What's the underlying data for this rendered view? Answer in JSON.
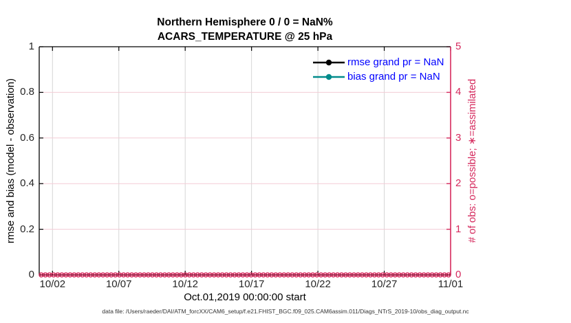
{
  "figure": {
    "title_line1": "Northern Hemisphere 0 / 0 = NaN%",
    "title_line2": "ACARS_TEMPERATURE @ 25 hPa",
    "xlabel": "Oct.01,2019 00:00:00 start",
    "ylabel_left": "rmse and bias (model - observation)",
    "ylabel_right": "# of obs: o=possible; ∗=assimilated",
    "annotation": "data file: /Users/raeder/DAI/ATM_forcXX/CAM6_setup/f.e21.FHIST_BGC.f09_025.CAM6assim.011/Diags_NTrS_2019-10/obs_diag_output.nc"
  },
  "legend": {
    "items": [
      {
        "label": "rmse grand pr = NaN",
        "color": "#000000"
      },
      {
        "label": "bias grand pr = NaN",
        "color": "#008b8b"
      }
    ],
    "text_color": "#0000ff"
  },
  "colors": {
    "obs_count_magenta": "#d5295d",
    "rmse_black": "#000000",
    "bias_teal": "#008b8b",
    "legend_text_blue": "#0000ff",
    "grid_pink": "#f3cbd5",
    "grid_gray": "#d6d6d6",
    "axis_black": "#000000",
    "tick_label_gray": "#262626"
  },
  "chart_data": {
    "type": "line",
    "title": "Northern Hemisphere 0 / 0 = NaN%",
    "subtitle": "ACARS_TEMPERATURE @ 25 hPa",
    "x_axis": {
      "label": "Oct.01,2019 00:00:00 start",
      "tick_labels": [
        "10/02",
        "10/07",
        "10/12",
        "10/17",
        "10/22",
        "10/27",
        "11/01"
      ],
      "tick_day_offsets": [
        1,
        6,
        11,
        16,
        21,
        26,
        31
      ],
      "range_days": 31
    },
    "y_left": {
      "label": "rmse and bias (model - observation)",
      "ticks": [
        0,
        0.2,
        0.4,
        0.6,
        0.8,
        1
      ],
      "range": [
        0,
        1
      ]
    },
    "y_right": {
      "label": "# of obs: o=possible; ∗=assimilated",
      "ticks": [
        0,
        1,
        2,
        3,
        4,
        5
      ],
      "range": [
        0,
        5
      ]
    },
    "grid": true,
    "legend_position": "top-right inside, no box",
    "series": [
      {
        "name": "rmse",
        "summary": "grand pr = NaN",
        "color": "#000000",
        "values": "all NaN - no line drawn"
      },
      {
        "name": "bias",
        "summary": "grand pr = NaN",
        "color": "#008b8b",
        "values": "all NaN - no line drawn"
      },
      {
        "name": "possible obs count",
        "axis": "right",
        "marker": "o",
        "color": "#d5295d",
        "constant_value": 0,
        "n_time_bins": 100
      },
      {
        "name": "assimilated obs count",
        "axis": "right",
        "marker": "∗",
        "color": "#d5295d",
        "constant_value": 0,
        "n_time_bins": 100
      }
    ]
  }
}
